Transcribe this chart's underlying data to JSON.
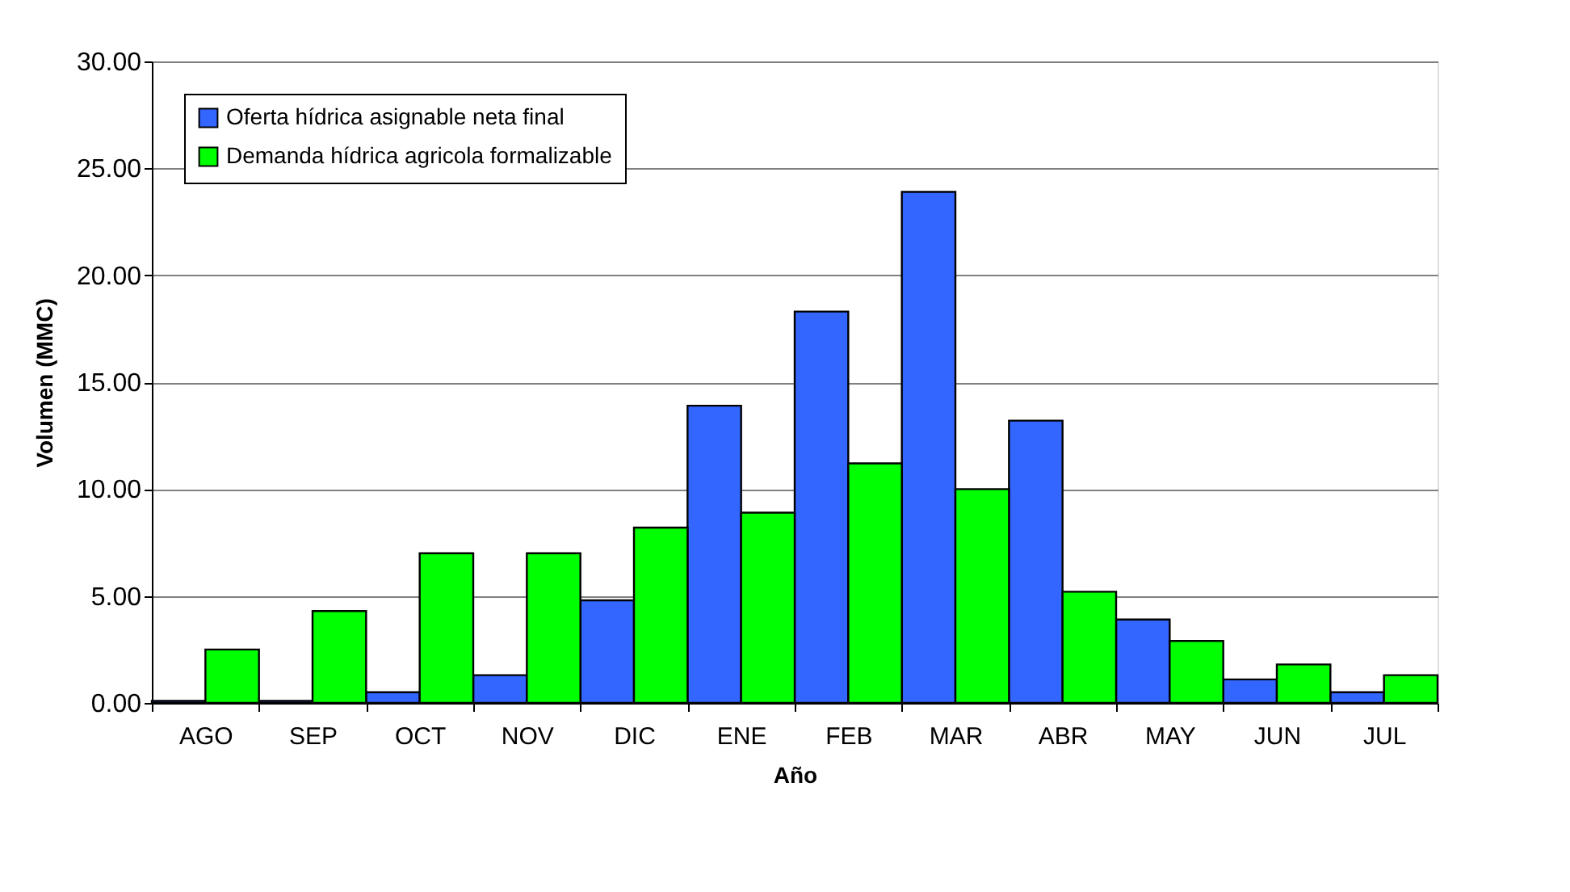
{
  "chart_data": {
    "type": "bar",
    "xlabel": "Año",
    "ylabel": "Volumen (MMC)",
    "categories": [
      "AGO",
      "SEP",
      "OCT",
      "NOV",
      "DIC",
      "ENE",
      "FEB",
      "MAR",
      "ABR",
      "MAY",
      "JUN",
      "JUL"
    ],
    "series": [
      {
        "name": "Oferta hídrica asignable neta final",
        "color": "#3366ff",
        "values": [
          0.1,
          0.1,
          0.5,
          1.3,
          4.8,
          13.9,
          18.3,
          23.9,
          13.2,
          3.9,
          1.1,
          0.5
        ]
      },
      {
        "name": "Demanda hídrica agricola formalizable",
        "color": "#00ff00",
        "values": [
          2.5,
          4.3,
          7.0,
          7.0,
          8.2,
          8.9,
          11.2,
          10.0,
          5.2,
          2.9,
          1.8,
          1.3
        ]
      }
    ],
    "ylim": [
      0,
      30
    ],
    "yticks": [
      {
        "value": 0,
        "label": "0.00"
      },
      {
        "value": 5,
        "label": "5.00"
      },
      {
        "value": 10,
        "label": "10.00"
      },
      {
        "value": 15,
        "label": "15.00"
      },
      {
        "value": 20,
        "label": "20.00"
      },
      {
        "value": 25,
        "label": "25.00"
      },
      {
        "value": 30,
        "label": "30.00"
      }
    ],
    "grid": "y",
    "legend": "top left"
  }
}
